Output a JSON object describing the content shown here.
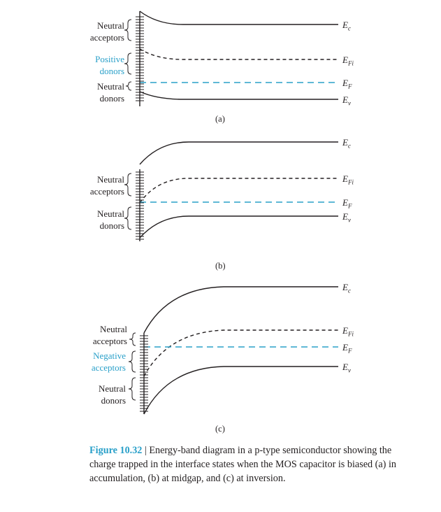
{
  "panels": [
    {
      "tag": "(a)",
      "groups": [
        {
          "lines": [
            "Neutral",
            "acceptors"
          ],
          "color": "black"
        },
        {
          "lines": [
            "Positive",
            "donors"
          ],
          "color": "cyan"
        },
        {
          "lines": [
            "Neutral",
            "donors"
          ],
          "color": "black"
        }
      ],
      "bands": {
        "Ec": "E",
        "EcSub": "c",
        "EFi": "E",
        "EFiSub": "Fi",
        "EF": "E",
        "EFSub": "F",
        "Ev": "E",
        "EvSub": "v"
      }
    },
    {
      "tag": "(b)",
      "groups": [
        {
          "lines": [
            "Neutral",
            "acceptors"
          ],
          "color": "black"
        },
        {
          "lines": [
            "Neutral",
            "donors"
          ],
          "color": "black"
        }
      ],
      "bands": {
        "Ec": "E",
        "EcSub": "c",
        "EFi": "E",
        "EFiSub": "Fi",
        "EF": "E",
        "EFSub": "F",
        "Ev": "E",
        "EvSub": "v"
      }
    },
    {
      "tag": "(c)",
      "groups": [
        {
          "lines": [
            "Neutral",
            "acceptors"
          ],
          "color": "black"
        },
        {
          "lines": [
            "Negative",
            "acceptors"
          ],
          "color": "cyan"
        },
        {
          "lines": [
            "Neutral",
            "donors"
          ],
          "color": "black"
        }
      ],
      "bands": {
        "Ec": "E",
        "EcSub": "c",
        "EFi": "E",
        "EFiSub": "Fi",
        "EF": "E",
        "EFSub": "F",
        "Ev": "E",
        "EvSub": "v"
      }
    }
  ],
  "caption": {
    "figure": "Figure 10.32",
    "separator": " | ",
    "text": "Energy-band diagram in a p-type semiconductor showing the charge trapped in the interface states when the MOS capacitor is biased (a) in accumulation, (b) at midgap, and (c) at inversion."
  },
  "colors": {
    "ink": "#231f20",
    "accent": "#2aa0c9"
  }
}
